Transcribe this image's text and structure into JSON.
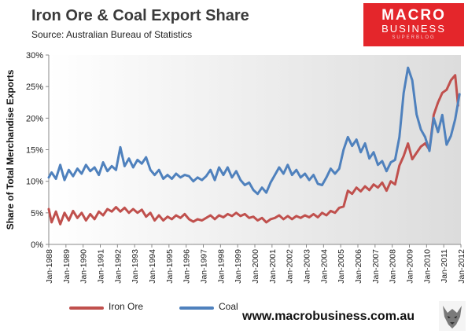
{
  "header": {
    "title": "Iron Ore & Coal Export Share",
    "source": "Source:  Australian Bureau of Statistics"
  },
  "logo": {
    "line1": "MACRO",
    "line2": "BUSINESS",
    "line3": "SUPERBLOG"
  },
  "footer": {
    "url": "www.macrobusiness.com.au"
  },
  "colors": {
    "iron_ore": "#c0504d",
    "coal": "#4f81bd",
    "logo_red": "#e4262b"
  },
  "chart_data": {
    "type": "line",
    "title": "Iron Ore & Coal Export Share",
    "ylabel": "Share of Total Merchandise Exports",
    "xlabel": "",
    "ylim": [
      0,
      30
    ],
    "yticks": [
      "0%",
      "5%",
      "10%",
      "15%",
      "20%",
      "25%",
      "30%"
    ],
    "xticks": [
      "Jan-1988",
      "Jan-1989",
      "Jan-1990",
      "Jan-1991",
      "Jan-1992",
      "Jan-1993",
      "Jan-1994",
      "Jan-1995",
      "Jan-1996",
      "Jan-1997",
      "Jan-1998",
      "Jan-1999",
      "Jan-2000",
      "Jan-2001",
      "Jan-2002",
      "Jan-2003",
      "Jan-2004",
      "Jan-2005",
      "Jan-2006",
      "Jan-2007",
      "Jan-2008",
      "Jan-2009",
      "Jan-2010",
      "Jan-2011",
      "Jan-2012"
    ],
    "legend_position": "bottom",
    "grid": false,
    "series": [
      {
        "name": "Iron Ore",
        "color": "#c0504d",
        "points": [
          [
            "1988-01",
            5.6
          ],
          [
            "1988-03",
            3.5
          ],
          [
            "1988-06",
            5.2
          ],
          [
            "1988-09",
            3.2
          ],
          [
            "1988-12",
            5.0
          ],
          [
            "1989-03",
            3.8
          ],
          [
            "1989-06",
            5.3
          ],
          [
            "1989-09",
            4.2
          ],
          [
            "1989-12",
            5.0
          ],
          [
            "1990-03",
            3.8
          ],
          [
            "1990-06",
            4.8
          ],
          [
            "1990-09",
            4.0
          ],
          [
            "1990-12",
            5.2
          ],
          [
            "1991-03",
            4.6
          ],
          [
            "1991-06",
            5.6
          ],
          [
            "1991-09",
            5.2
          ],
          [
            "1991-12",
            5.9
          ],
          [
            "1992-03",
            5.2
          ],
          [
            "1992-06",
            5.8
          ],
          [
            "1992-09",
            5.0
          ],
          [
            "1992-12",
            5.6
          ],
          [
            "1993-03",
            5.0
          ],
          [
            "1993-06",
            5.5
          ],
          [
            "1993-09",
            4.4
          ],
          [
            "1993-12",
            5.0
          ],
          [
            "1994-03",
            3.8
          ],
          [
            "1994-06",
            4.6
          ],
          [
            "1994-09",
            3.8
          ],
          [
            "1994-12",
            4.4
          ],
          [
            "1995-03",
            4.0
          ],
          [
            "1995-06",
            4.6
          ],
          [
            "1995-09",
            4.2
          ],
          [
            "1995-12",
            4.8
          ],
          [
            "1996-03",
            4.0
          ],
          [
            "1996-06",
            3.6
          ],
          [
            "1996-09",
            4.0
          ],
          [
            "1996-12",
            3.8
          ],
          [
            "1997-03",
            4.2
          ],
          [
            "1997-06",
            4.6
          ],
          [
            "1997-09",
            4.0
          ],
          [
            "1997-12",
            4.6
          ],
          [
            "1998-03",
            4.3
          ],
          [
            "1998-06",
            4.8
          ],
          [
            "1998-09",
            4.5
          ],
          [
            "1998-12",
            5.0
          ],
          [
            "1999-03",
            4.5
          ],
          [
            "1999-06",
            4.8
          ],
          [
            "1999-09",
            4.2
          ],
          [
            "1999-12",
            4.4
          ],
          [
            "2000-03",
            3.8
          ],
          [
            "2000-06",
            4.2
          ],
          [
            "2000-09",
            3.5
          ],
          [
            "2000-12",
            4.0
          ],
          [
            "2001-03",
            4.2
          ],
          [
            "2001-06",
            4.6
          ],
          [
            "2001-09",
            4.0
          ],
          [
            "2001-12",
            4.5
          ],
          [
            "2002-03",
            4.0
          ],
          [
            "2002-06",
            4.5
          ],
          [
            "2002-09",
            4.2
          ],
          [
            "2002-12",
            4.6
          ],
          [
            "2003-03",
            4.3
          ],
          [
            "2003-06",
            4.8
          ],
          [
            "2003-09",
            4.3
          ],
          [
            "2003-12",
            5.0
          ],
          [
            "2004-03",
            4.6
          ],
          [
            "2004-06",
            5.3
          ],
          [
            "2004-09",
            5.0
          ],
          [
            "2004-12",
            5.8
          ],
          [
            "2005-03",
            6.0
          ],
          [
            "2005-06",
            8.5
          ],
          [
            "2005-09",
            8.0
          ],
          [
            "2005-12",
            9.0
          ],
          [
            "2006-03",
            8.4
          ],
          [
            "2006-06",
            9.2
          ],
          [
            "2006-09",
            8.6
          ],
          [
            "2006-12",
            9.5
          ],
          [
            "2007-03",
            9.0
          ],
          [
            "2007-06",
            9.8
          ],
          [
            "2007-09",
            8.5
          ],
          [
            "2007-12",
            10.0
          ],
          [
            "2008-03",
            9.5
          ],
          [
            "2008-06",
            12.5
          ],
          [
            "2008-09",
            14.0
          ],
          [
            "2008-12",
            16.0
          ],
          [
            "2009-03",
            13.5
          ],
          [
            "2009-06",
            14.5
          ],
          [
            "2009-09",
            15.5
          ],
          [
            "2009-12",
            16.0
          ],
          [
            "2010-03",
            15.0
          ],
          [
            "2010-06",
            20.5
          ],
          [
            "2010-09",
            22.5
          ],
          [
            "2010-12",
            24.0
          ],
          [
            "2011-03",
            24.5
          ],
          [
            "2011-06",
            26.0
          ],
          [
            "2011-09",
            26.8
          ],
          [
            "2011-11",
            22.0
          ]
        ]
      },
      {
        "name": "Coal",
        "color": "#4f81bd",
        "points": [
          [
            "1988-01",
            10.6
          ],
          [
            "1988-03",
            11.4
          ],
          [
            "1988-06",
            10.4
          ],
          [
            "1988-09",
            12.6
          ],
          [
            "1988-12",
            10.2
          ],
          [
            "1989-03",
            11.8
          ],
          [
            "1989-06",
            10.8
          ],
          [
            "1989-09",
            12.0
          ],
          [
            "1989-12",
            11.2
          ],
          [
            "1990-03",
            12.6
          ],
          [
            "1990-06",
            11.6
          ],
          [
            "1990-09",
            12.2
          ],
          [
            "1990-12",
            11.0
          ],
          [
            "1991-03",
            13.0
          ],
          [
            "1991-06",
            11.6
          ],
          [
            "1991-09",
            12.4
          ],
          [
            "1991-12",
            11.8
          ],
          [
            "1992-03",
            15.4
          ],
          [
            "1992-06",
            12.4
          ],
          [
            "1992-09",
            13.6
          ],
          [
            "1992-12",
            12.2
          ],
          [
            "1993-03",
            13.4
          ],
          [
            "1993-06",
            12.8
          ],
          [
            "1993-09",
            13.8
          ],
          [
            "1993-12",
            11.8
          ],
          [
            "1994-03",
            11.0
          ],
          [
            "1994-06",
            11.8
          ],
          [
            "1994-09",
            10.4
          ],
          [
            "1994-12",
            11.0
          ],
          [
            "1995-03",
            10.4
          ],
          [
            "1995-06",
            11.2
          ],
          [
            "1995-09",
            10.6
          ],
          [
            "1995-12",
            11.0
          ],
          [
            "1996-03",
            10.8
          ],
          [
            "1996-06",
            10.0
          ],
          [
            "1996-09",
            10.6
          ],
          [
            "1996-12",
            10.2
          ],
          [
            "1997-03",
            10.8
          ],
          [
            "1997-06",
            11.8
          ],
          [
            "1997-09",
            10.2
          ],
          [
            "1997-12",
            12.2
          ],
          [
            "1998-03",
            11.0
          ],
          [
            "1998-06",
            12.2
          ],
          [
            "1998-09",
            10.6
          ],
          [
            "1998-12",
            11.6
          ],
          [
            "1999-03",
            10.2
          ],
          [
            "1999-06",
            9.4
          ],
          [
            "1999-09",
            9.8
          ],
          [
            "1999-12",
            8.6
          ],
          [
            "2000-03",
            8.0
          ],
          [
            "2000-06",
            9.0
          ],
          [
            "2000-09",
            8.2
          ],
          [
            "2000-12",
            9.8
          ],
          [
            "2001-03",
            11.0
          ],
          [
            "2001-06",
            12.2
          ],
          [
            "2001-09",
            11.2
          ],
          [
            "2001-12",
            12.6
          ],
          [
            "2002-03",
            11.0
          ],
          [
            "2002-06",
            11.8
          ],
          [
            "2002-09",
            10.6
          ],
          [
            "2002-12",
            11.2
          ],
          [
            "2003-03",
            10.2
          ],
          [
            "2003-06",
            11.0
          ],
          [
            "2003-09",
            9.6
          ],
          [
            "2003-12",
            9.4
          ],
          [
            "2004-03",
            10.6
          ],
          [
            "2004-06",
            12.0
          ],
          [
            "2004-09",
            11.2
          ],
          [
            "2004-12",
            12.0
          ],
          [
            "2005-03",
            15.0
          ],
          [
            "2005-06",
            17.0
          ],
          [
            "2005-09",
            15.6
          ],
          [
            "2005-12",
            16.6
          ],
          [
            "2006-03",
            14.6
          ],
          [
            "2006-06",
            16.0
          ],
          [
            "2006-09",
            13.6
          ],
          [
            "2006-12",
            14.6
          ],
          [
            "2007-03",
            12.6
          ],
          [
            "2007-06",
            13.2
          ],
          [
            "2007-09",
            11.6
          ],
          [
            "2007-12",
            13.0
          ],
          [
            "2008-03",
            13.4
          ],
          [
            "2008-06",
            17.0
          ],
          [
            "2008-09",
            24.0
          ],
          [
            "2008-12",
            28.0
          ],
          [
            "2009-03",
            26.0
          ],
          [
            "2009-06",
            20.6
          ],
          [
            "2009-09",
            18.2
          ],
          [
            "2009-12",
            17.0
          ],
          [
            "2010-03",
            14.8
          ],
          [
            "2010-06",
            20.0
          ],
          [
            "2010-09",
            17.8
          ],
          [
            "2010-12",
            20.5
          ],
          [
            "2011-03",
            15.8
          ],
          [
            "2011-06",
            17.2
          ],
          [
            "2011-09",
            19.8
          ],
          [
            "2011-12",
            23.8
          ]
        ]
      }
    ]
  }
}
